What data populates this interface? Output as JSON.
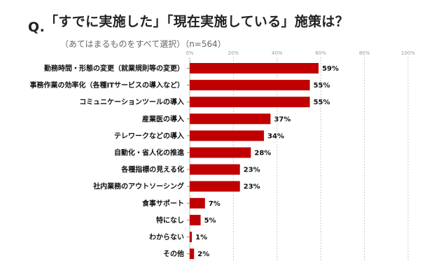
{
  "header": {
    "q_label": "Q.",
    "title": "「すでに実施した」「現在実施している」施策は？",
    "subtitle": "（あてはまるものをすべて選択）（n=564）"
  },
  "chart_data": {
    "type": "bar",
    "orientation": "horizontal",
    "title": "「すでに実施した」「現在実施している」施策は？",
    "subtitle": "（あてはまるものをすべて選択）（n=564）",
    "xlim": [
      0,
      100
    ],
    "x_ticks": [
      "0%",
      "20%",
      "40%",
      "60%",
      "80%",
      "100%"
    ],
    "grid": true,
    "bar_color": "#c00000",
    "categories": [
      "勤務時間・形態の変更（就業規則等の変更）",
      "事務作業の効率化（各種ITサービスの導入など）",
      "コミュニケーションツールの導入",
      "産業医の導入",
      "テレワークなどの導入",
      "自動化・省人化の推進",
      "各種指標の見える化",
      "社内業務のアウトソーシング",
      "食事サポート",
      "特になし",
      "わからない",
      "その他"
    ],
    "values": [
      59,
      55,
      55,
      37,
      34,
      28,
      23,
      23,
      7,
      5,
      1,
      2
    ],
    "value_labels": [
      "59%",
      "55%",
      "55%",
      "37%",
      "34%",
      "28%",
      "23%",
      "23%",
      "7%",
      "5%",
      "1%",
      "2%"
    ]
  }
}
